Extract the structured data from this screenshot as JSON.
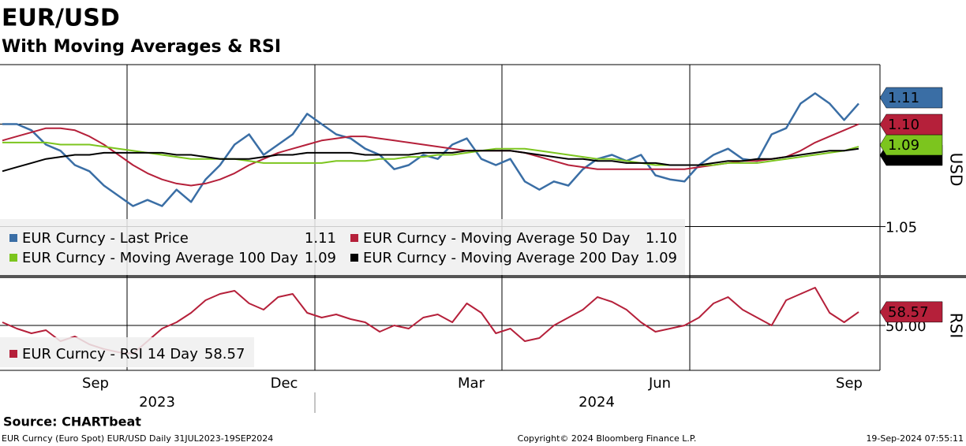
{
  "title": "EUR/USD",
  "subtitle": "With Moving Averages & RSI",
  "source": "Source: CHARTbeat",
  "footer_left": "EUR Curncy (Euro Spot) EUR/USD  Daily 31JUL2023-19SEP2024",
  "footer_center": "Copyright© 2024 Bloomberg Finance L.P.",
  "footer_right": "19-Sep-2024 07:55:11",
  "months": [
    "Sep",
    "Dec",
    "Mar",
    "Jun",
    "Sep"
  ],
  "years": [
    "2023",
    "2024"
  ],
  "chart_data": [
    {
      "type": "line",
      "y_label": "USD",
      "ylim": [
        1.026,
        1.129
      ],
      "yticks": [
        1.05,
        {
          "value": 1.1,
          "label": "1.10"
        }
      ],
      "grid": true,
      "series": [
        {
          "name": "EUR Curncy - Last Price",
          "color": "#3a6ea5",
          "value_label": "1.11",
          "values": [
            1.1,
            1.1,
            1.097,
            1.09,
            1.087,
            1.08,
            1.077,
            1.07,
            1.065,
            1.06,
            1.063,
            1.06,
            1.068,
            1.062,
            1.073,
            1.08,
            1.09,
            1.095,
            1.085,
            1.09,
            1.095,
            1.105,
            1.1,
            1.095,
            1.093,
            1.088,
            1.085,
            1.078,
            1.08,
            1.085,
            1.083,
            1.09,
            1.093,
            1.083,
            1.08,
            1.083,
            1.072,
            1.068,
            1.072,
            1.07,
            1.078,
            1.083,
            1.085,
            1.082,
            1.085,
            1.075,
            1.073,
            1.072,
            1.08,
            1.085,
            1.088,
            1.083,
            1.082,
            1.095,
            1.098,
            1.11,
            1.115,
            1.11,
            1.102,
            1.11
          ]
        },
        {
          "name": "EUR Curncy - Moving Average 50 Day",
          "color": "#b5203a",
          "value_label": "1.10",
          "values": [
            1.092,
            1.094,
            1.096,
            1.098,
            1.098,
            1.097,
            1.094,
            1.09,
            1.085,
            1.08,
            1.076,
            1.073,
            1.071,
            1.07,
            1.071,
            1.073,
            1.076,
            1.08,
            1.083,
            1.086,
            1.088,
            1.09,
            1.092,
            1.093,
            1.094,
            1.094,
            1.093,
            1.092,
            1.091,
            1.09,
            1.089,
            1.088,
            1.087,
            1.087,
            1.087,
            1.087,
            1.086,
            1.084,
            1.082,
            1.08,
            1.079,
            1.078,
            1.078,
            1.078,
            1.078,
            1.078,
            1.078,
            1.078,
            1.079,
            1.08,
            1.081,
            1.082,
            1.082,
            1.083,
            1.084,
            1.087,
            1.091,
            1.094,
            1.097,
            1.1
          ]
        },
        {
          "name": "EUR Curncy - Moving Average 100 Day",
          "color": "#7cc51e",
          "value_label": "1.09",
          "values": [
            1.091,
            1.091,
            1.091,
            1.091,
            1.09,
            1.09,
            1.09,
            1.089,
            1.088,
            1.087,
            1.086,
            1.085,
            1.084,
            1.083,
            1.083,
            1.083,
            1.083,
            1.082,
            1.081,
            1.081,
            1.081,
            1.081,
            1.081,
            1.082,
            1.082,
            1.082,
            1.083,
            1.083,
            1.084,
            1.084,
            1.085,
            1.085,
            1.086,
            1.087,
            1.088,
            1.088,
            1.088,
            1.087,
            1.086,
            1.085,
            1.084,
            1.083,
            1.083,
            1.082,
            1.081,
            1.08,
            1.08,
            1.08,
            1.08,
            1.08,
            1.081,
            1.081,
            1.081,
            1.082,
            1.083,
            1.084,
            1.085,
            1.086,
            1.087,
            1.089
          ]
        },
        {
          "name": "EUR Curncy - Moving Average 200 Day",
          "color": "#000000",
          "value_label": "1.09",
          "values": [
            1.077,
            1.079,
            1.081,
            1.083,
            1.084,
            1.085,
            1.085,
            1.086,
            1.086,
            1.086,
            1.086,
            1.086,
            1.085,
            1.085,
            1.084,
            1.083,
            1.083,
            1.083,
            1.084,
            1.085,
            1.085,
            1.086,
            1.086,
            1.086,
            1.086,
            1.085,
            1.085,
            1.085,
            1.085,
            1.086,
            1.086,
            1.086,
            1.087,
            1.087,
            1.087,
            1.087,
            1.086,
            1.085,
            1.084,
            1.083,
            1.083,
            1.082,
            1.082,
            1.081,
            1.081,
            1.081,
            1.08,
            1.08,
            1.08,
            1.081,
            1.082,
            1.082,
            1.083,
            1.083,
            1.084,
            1.085,
            1.086,
            1.087,
            1.087,
            1.088
          ]
        }
      ]
    },
    {
      "type": "line",
      "y_label": "RSI",
      "ylim": [
        21.5,
        79
      ],
      "yticks": [
        {
          "value": 50,
          "label": "50.00"
        }
      ],
      "grid": true,
      "series": [
        {
          "name": "EUR Curncy - RSI 14 Day",
          "color": "#b5203a",
          "value_label": "58.57",
          "values": [
            52,
            48,
            45,
            47,
            40,
            43,
            38,
            35,
            33,
            32,
            40,
            48,
            52,
            58,
            66,
            70,
            72,
            64,
            60,
            68,
            70,
            58,
            55,
            57,
            54,
            52,
            46,
            50,
            48,
            55,
            57,
            52,
            64,
            58,
            45,
            48,
            40,
            42,
            50,
            55,
            60,
            68,
            65,
            60,
            52,
            46,
            48,
            50,
            55,
            64,
            68,
            60,
            55,
            50,
            66,
            70,
            74,
            58,
            52,
            58.57
          ]
        }
      ]
    }
  ]
}
